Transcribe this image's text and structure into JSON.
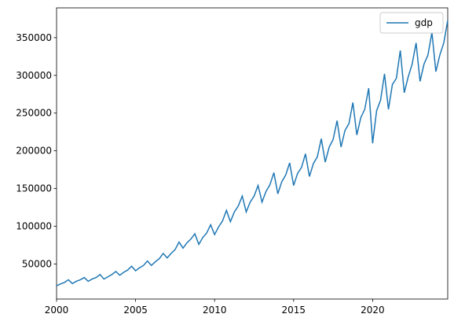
{
  "chart_data": {
    "type": "line",
    "x": [
      2000,
      2000.25,
      2000.5,
      2000.75,
      2001,
      2001.25,
      2001.5,
      2001.75,
      2002,
      2002.25,
      2002.5,
      2002.75,
      2003,
      2003.25,
      2003.5,
      2003.75,
      2004,
      2004.25,
      2004.5,
      2004.75,
      2005,
      2005.25,
      2005.5,
      2005.75,
      2006,
      2006.25,
      2006.5,
      2006.75,
      2007,
      2007.25,
      2007.5,
      2007.75,
      2008,
      2008.25,
      2008.5,
      2008.75,
      2009,
      2009.25,
      2009.5,
      2009.75,
      2010,
      2010.25,
      2010.5,
      2010.75,
      2011,
      2011.25,
      2011.5,
      2011.75,
      2012,
      2012.25,
      2012.5,
      2012.75,
      2013,
      2013.25,
      2013.5,
      2013.75,
      2014,
      2014.25,
      2014.5,
      2014.75,
      2015,
      2015.25,
      2015.5,
      2015.75,
      2016,
      2016.25,
      2016.5,
      2016.75,
      2017,
      2017.25,
      2017.5,
      2017.75,
      2018,
      2018.25,
      2018.5,
      2018.75,
      2019,
      2019.25,
      2019.5,
      2019.75,
      2020,
      2020.25,
      2020.5,
      2020.75,
      2021,
      2021.25,
      2021.5,
      2021.75,
      2022,
      2022.25,
      2022.5,
      2022.75,
      2023,
      2023.25,
      2023.5,
      2023.75,
      2024,
      2024.25,
      2024.5,
      2024.75
    ],
    "series": [
      {
        "name": "gdp",
        "color": "#1f77b4",
        "values": [
          21000,
          23500,
          25500,
          29000,
          24000,
          27000,
          29000,
          32000,
          27000,
          30000,
          32000,
          36000,
          30000,
          33000,
          36000,
          40000,
          35000,
          39000,
          42000,
          47000,
          41000,
          45000,
          48000,
          54000,
          48000,
          53000,
          57000,
          64000,
          58000,
          64000,
          69000,
          79000,
          71000,
          78000,
          83000,
          90000,
          76000,
          85000,
          91000,
          102000,
          89000,
          99000,
          107000,
          121000,
          106000,
          119000,
          127000,
          140000,
          119000,
          132000,
          140000,
          154000,
          132000,
          146000,
          155000,
          171000,
          143000,
          159000,
          168000,
          184000,
          154000,
          170000,
          178000,
          196000,
          166000,
          183000,
          192000,
          216000,
          185000,
          205000,
          215000,
          240000,
          205000,
          227000,
          236000,
          264000,
          221000,
          244000,
          255000,
          283000,
          210000,
          253000,
          267000,
          302000,
          255000,
          288000,
          296000,
          333000,
          277000,
          298000,
          315000,
          343000,
          292000,
          315000,
          327000,
          357000,
          305000,
          327000,
          343000,
          373000
        ]
      }
    ],
    "xlim": [
      2000,
      2024.75
    ],
    "xticks": [
      2000,
      2005,
      2010,
      2015,
      2020
    ],
    "ylim": [
      3500,
      389500
    ],
    "yticks": [
      50000,
      100000,
      150000,
      200000,
      250000,
      300000,
      350000
    ],
    "legend": "upper right"
  }
}
